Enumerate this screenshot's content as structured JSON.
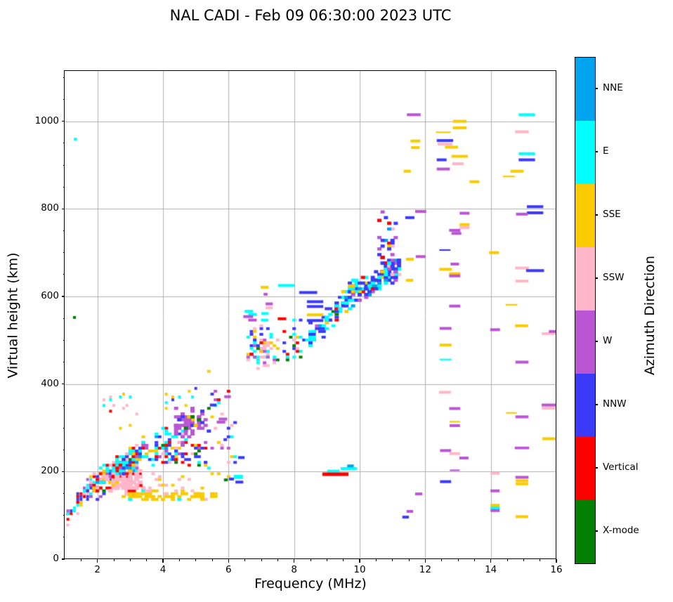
{
  "title": "NAL CADI - Feb 09 06:30:00 2023 UTC",
  "chart_data": {
    "type": "scatter",
    "title": "NAL CADI - Feb 09 06:30:00 2023 UTC",
    "xlabel": "Frequency (MHz)",
    "ylabel": "Virtual height (km)",
    "colorbar_title": "Azimuth Direction",
    "xlim": [
      1.0,
      16.0
    ],
    "ylim": [
      0,
      1115
    ],
    "x_major_ticks": [
      2,
      4,
      6,
      8,
      10,
      12,
      14,
      16
    ],
    "x_minor_step": 0.5,
    "y_major_ticks": [
      0,
      200,
      400,
      600,
      800,
      1000
    ],
    "y_minor_step": 50,
    "grid": true,
    "grid_color": "#b0b0b0",
    "background": "#ffffff",
    "categories": [
      {
        "label": "NNE",
        "color": "#00A3EE"
      },
      {
        "label": "E",
        "color": "#00FFFF"
      },
      {
        "label": "SSE",
        "color": "#F9CB00"
      },
      {
        "label": "SSW",
        "color": "#FFB6C8"
      },
      {
        "label": "W",
        "color": "#BA55D3"
      },
      {
        "label": "NNW",
        "color": "#3B3AF8"
      },
      {
        "label": "Vertical",
        "color": "#FF0000"
      },
      {
        "label": "X-mode",
        "color": "#038003"
      }
    ],
    "bin": {
      "f_mhz": 0.1,
      "km": 6.5
    },
    "clusters": [
      {
        "name": "e-region-tail",
        "shape": "slash",
        "f": [
          1.05,
          1.95
        ],
        "kmTrend": [
          95,
          185
        ],
        "spread": 55,
        "n": 48,
        "size": [
          4,
          4
        ],
        "seed": 11,
        "colors": {
          "E": 0.28,
          "Vertical": 0.2,
          "NNW": 0.18,
          "SSE": 0.12,
          "SSW": 0.12,
          "W": 0.1
        }
      },
      {
        "name": "e-region-core",
        "shape": "slash",
        "f": [
          1.8,
          3.3
        ],
        "kmTrend": [
          165,
          230
        ],
        "spread": 80,
        "n": 215,
        "size": [
          5,
          4
        ],
        "seed": 22,
        "colors": {
          "Vertical": 0.27,
          "E": 0.26,
          "NNW": 0.11,
          "SSE": 0.1,
          "SSW": 0.13,
          "W": 0.06,
          "NNE": 0.03,
          "X-mode": 0.02,
          "NNE2": 0.02
        }
      },
      {
        "name": "pink-blob",
        "shape": "blob",
        "f": [
          2.2,
          3.45
        ],
        "km": [
          146,
          202
        ],
        "n": 95,
        "size": [
          7,
          5
        ],
        "seed": 33,
        "colors": {
          "SSW": 0.93,
          "Vertical": 0.04,
          "SSE": 0.03
        }
      },
      {
        "name": "gold-band",
        "shape": "band",
        "f": [
          2.75,
          5.65
        ],
        "km": [
          136,
          154
        ],
        "n": 75,
        "size": [
          6,
          4
        ],
        "seed": 44,
        "colors": {
          "SSE": 0.85,
          "SSW": 0.1,
          "E": 0.05
        }
      },
      {
        "name": "pink-row",
        "shape": "band",
        "f": [
          2.4,
          5.7
        ],
        "km": [
          156,
          196
        ],
        "n": 26,
        "size": [
          5,
          4
        ],
        "seed": 55,
        "colors": {
          "SSW": 0.75,
          "SSE": 0.25
        }
      },
      {
        "name": "cyan-rise",
        "shape": "slash",
        "f": [
          2.5,
          4.7
        ],
        "kmTrend": [
          210,
          290
        ],
        "spread": 75,
        "n": 115,
        "size": [
          5,
          4
        ],
        "seed": 66,
        "colors": {
          "E": 0.42,
          "Vertical": 0.2,
          "NNW": 0.12,
          "SSE": 0.11,
          "SSW": 0.05,
          "W": 0.05,
          "NNE": 0.05
        }
      },
      {
        "name": "purple-cluster",
        "shape": "blob",
        "f": [
          4.25,
          5.45
        ],
        "km": [
          272,
          348
        ],
        "n": 70,
        "size": [
          6,
          4.5
        ],
        "seed": 77,
        "colors": {
          "W": 0.7,
          "NNW": 0.12,
          "SSE": 0.06,
          "E": 0.05,
          "X-mode": 0.04,
          "Vertical": 0.03
        }
      },
      {
        "name": "mixed-row",
        "shape": "band",
        "f": [
          3.75,
          5.35
        ],
        "km": [
          213,
          272
        ],
        "n": 58,
        "size": [
          5,
          4
        ],
        "seed": 88,
        "colors": {
          "NNW": 0.28,
          "W": 0.2,
          "Vertical": 0.16,
          "E": 0.15,
          "SSE": 0.11,
          "SSW": 0.05,
          "X-mode": 0.05
        }
      },
      {
        "name": "column-5-6",
        "shape": "band",
        "f": [
          5.4,
          6.2
        ],
        "km": [
          185,
          430
        ],
        "n": 34,
        "size": [
          5,
          4
        ],
        "seed": 99,
        "colors": {
          "NNW": 0.3,
          "E": 0.2,
          "W": 0.16,
          "SSW": 0.12,
          "SSE": 0.1,
          "Vertical": 0.07,
          "X-mode": 0.05
        }
      },
      {
        "name": "f1-column",
        "shape": "blob",
        "f": [
          6.42,
          7.58
        ],
        "km": [
          428,
          532
        ],
        "n": 80,
        "size": [
          5,
          4
        ],
        "seed": 111,
        "colors": {
          "SSW": 0.28,
          "E": 0.28,
          "NNW": 0.16,
          "SSE": 0.1,
          "W": 0.1,
          "Vertical": 0.06,
          "X-mode": 0.02
        }
      },
      {
        "name": "column-8",
        "shape": "band",
        "f": [
          7.72,
          8.28
        ],
        "km": [
          452,
          548
        ],
        "n": 26,
        "size": [
          5,
          4
        ],
        "seed": 122,
        "colors": {
          "E": 0.33,
          "NNW": 0.27,
          "SSW": 0.15,
          "Vertical": 0.1,
          "SSE": 0.1,
          "X-mode": 0.05
        }
      },
      {
        "name": "column-9",
        "shape": "slash",
        "f": [
          8.4,
          9.45
        ],
        "kmTrend": [
          495,
          585
        ],
        "spread": 70,
        "n": 62,
        "size": [
          6,
          4
        ],
        "seed": 133,
        "colors": {
          "E": 0.4,
          "NNW": 0.33,
          "Vertical": 0.07,
          "SSE": 0.07,
          "X-mode": 0.05,
          "W": 0.04,
          "NNE": 0.04
        }
      },
      {
        "name": "main-f-trace",
        "shape": "slash",
        "f": [
          9.45,
          11.25
        ],
        "kmTrend": [
          590,
          668
        ],
        "spread": 70,
        "n": 160,
        "size": [
          6,
          4.5
        ],
        "seed": 144,
        "colors": {
          "NNW": 0.37,
          "E": 0.3,
          "SSE": 0.1,
          "NNE": 0.06,
          "W": 0.06,
          "Vertical": 0.05,
          "X-mode": 0.04,
          "SSW": 0.02
        }
      },
      {
        "name": "spread-f-column",
        "shape": "band",
        "f": [
          10.55,
          11.1
        ],
        "km": [
          650,
          792
        ],
        "n": 38,
        "size": [
          6,
          4.5
        ],
        "seed": 155,
        "colors": {
          "NNW": 0.42,
          "W": 0.15,
          "SSE": 0.13,
          "E": 0.1,
          "Vertical": 0.09,
          "NNE": 0.06,
          "SSW": 0.05
        }
      },
      {
        "name": "upper-specks",
        "shape": "band",
        "f": [
          2.15,
          3.25
        ],
        "km": [
          300,
          378
        ],
        "n": 14,
        "size": [
          4,
          4
        ],
        "seed": 166,
        "colors": {
          "E": 0.4,
          "SSE": 0.3,
          "SSW": 0.2,
          "Vertical": 0.1
        }
      },
      {
        "name": "specks-4mhz",
        "shape": "band",
        "f": [
          4.0,
          5.15
        ],
        "km": [
          345,
          392
        ],
        "n": 10,
        "size": [
          4,
          4
        ],
        "seed": 177,
        "colors": {
          "NNW": 0.4,
          "SSE": 0.3,
          "E": 0.3
        }
      }
    ],
    "points": [
      [
        1.33,
        959,
        "E",
        0.1
      ],
      [
        1.3,
        552,
        "X-mode",
        0.09
      ],
      [
        5.92,
        181,
        "X-mode",
        0.12
      ],
      [
        6.09,
        183,
        "NNW",
        0.15
      ],
      [
        6.3,
        188,
        "E",
        0.28,
        9
      ],
      [
        6.33,
        176,
        "NNW",
        0.24
      ],
      [
        6.39,
        232,
        "NNW",
        0.2
      ],
      [
        5.97,
        371,
        "W",
        0.2
      ],
      [
        5.53,
        352,
        "NNW",
        0.2
      ],
      [
        5.83,
        320,
        "W",
        0.26
      ],
      [
        5.77,
        313,
        "W",
        0.26
      ],
      [
        6.62,
        566,
        "E",
        0.26
      ],
      [
        6.73,
        559,
        "E",
        0.26
      ],
      [
        7.11,
        561,
        "E",
        0.22
      ],
      [
        6.6,
        554,
        "W",
        0.3
      ],
      [
        6.73,
        546,
        "W",
        0.26
      ],
      [
        7.1,
        546,
        "E",
        0.22
      ],
      [
        7.24,
        583,
        "W",
        0.22
      ],
      [
        7.24,
        574,
        "SSW",
        0.22
      ],
      [
        7.63,
        549,
        "Vertical",
        0.26
      ],
      [
        7.1,
        621,
        "SSE",
        0.24
      ],
      [
        7.76,
        625,
        "E",
        0.5
      ],
      [
        7.13,
        605,
        "W",
        0.12
      ],
      [
        8.43,
        609,
        "NNW",
        0.55
      ],
      [
        8.64,
        588,
        "NNW",
        0.5
      ],
      [
        8.64,
        577,
        "NNW",
        0.5
      ],
      [
        8.64,
        558,
        "SSE",
        0.5
      ],
      [
        8.64,
        545,
        "NNW",
        0.5
      ],
      [
        9.2,
        201,
        "E",
        0.38
      ],
      [
        9.26,
        194,
        "Vertical",
        0.8,
        8
      ],
      [
        9.67,
        207,
        "E",
        0.5
      ],
      [
        9.72,
        213,
        "NNE",
        0.2
      ],
      [
        11.65,
        1015,
        "W",
        0.42
      ],
      [
        11.7,
        955,
        "SSE",
        0.3
      ],
      [
        11.7,
        940,
        "SSE",
        0.26
      ],
      [
        11.45,
        886,
        "SSE",
        0.22
      ],
      [
        11.86,
        794,
        "W",
        0.34
      ],
      [
        11.53,
        780,
        "NNW",
        0.28
      ],
      [
        11.86,
        691,
        "W",
        0.3
      ],
      [
        11.53,
        685,
        "SSE",
        0.24
      ],
      [
        11.52,
        637,
        "SSE",
        0.22
      ],
      [
        11.8,
        149,
        "W",
        0.22
      ],
      [
        11.53,
        109,
        "W",
        0.2
      ],
      [
        11.4,
        96,
        "NNW",
        0.2
      ],
      [
        13.05,
        1000,
        "SSE",
        0.42
      ],
      [
        13.05,
        985,
        "SSE",
        0.42
      ],
      [
        12.55,
        975,
        "SSE",
        0.45,
        3.5
      ],
      [
        12.6,
        956,
        "NNW",
        0.5
      ],
      [
        12.6,
        948,
        "SSW",
        0.45
      ],
      [
        12.8,
        941,
        "SSE",
        0.4
      ],
      [
        13.05,
        920,
        "SSE",
        0.5
      ],
      [
        12.5,
        912,
        "NNW",
        0.3
      ],
      [
        13.0,
        903,
        "SSW",
        0.35
      ],
      [
        12.55,
        891,
        "W",
        0.4
      ],
      [
        13.2,
        790,
        "W",
        0.3
      ],
      [
        13.2,
        764,
        "SSE",
        0.3
      ],
      [
        13.2,
        757,
        "SSW",
        0.3
      ],
      [
        12.9,
        751,
        "W",
        0.34
      ],
      [
        12.95,
        744,
        "W",
        0.3
      ],
      [
        12.6,
        706,
        "NNW",
        0.34,
        3.5
      ],
      [
        12.9,
        674,
        "W",
        0.26
      ],
      [
        12.62,
        662,
        "SSE",
        0.38
      ],
      [
        12.9,
        652,
        "SSE",
        0.34
      ],
      [
        12.9,
        647,
        "W",
        0.34
      ],
      [
        12.9,
        578,
        "W",
        0.34
      ],
      [
        12.62,
        527,
        "W",
        0.36
      ],
      [
        12.62,
        489,
        "SSE",
        0.36
      ],
      [
        12.62,
        456,
        "E",
        0.36,
        3.5
      ],
      [
        12.6,
        381,
        "SSW",
        0.36
      ],
      [
        12.9,
        344,
        "W",
        0.34
      ],
      [
        12.9,
        314,
        "SSE",
        0.32,
        3.5
      ],
      [
        12.9,
        305,
        "W",
        0.32
      ],
      [
        12.62,
        248,
        "W",
        0.34
      ],
      [
        12.9,
        241,
        "SSW",
        0.32
      ],
      [
        13.18,
        231,
        "W",
        0.28
      ],
      [
        12.9,
        203,
        "W",
        0.3,
        3.5
      ],
      [
        12.62,
        177,
        "NNW",
        0.34
      ],
      [
        13.5,
        862,
        "SSE",
        0.3
      ],
      [
        14.1,
        700,
        "SSE",
        0.3
      ],
      [
        14.55,
        874,
        "SSE",
        0.36,
        3.5
      ],
      [
        14.63,
        581,
        "SSE",
        0.36,
        3.5
      ],
      [
        14.63,
        334,
        "SSE",
        0.33,
        3.5
      ],
      [
        14.13,
        524,
        "W",
        0.3
      ],
      [
        14.13,
        196,
        "SSW",
        0.28
      ],
      [
        14.13,
        156,
        "W",
        0.28
      ],
      [
        14.13,
        123,
        "SSE",
        0.28
      ],
      [
        14.13,
        117,
        "E",
        0.28
      ],
      [
        14.13,
        111,
        "W",
        0.28
      ],
      [
        14.8,
        886,
        "SSE",
        0.4
      ],
      [
        14.95,
        976,
        "SSW",
        0.42
      ],
      [
        15.1,
        1015,
        "E",
        0.5
      ],
      [
        15.1,
        926,
        "E",
        0.5
      ],
      [
        15.1,
        912,
        "NNW",
        0.5
      ],
      [
        15.35,
        805,
        "NNW",
        0.5
      ],
      [
        15.35,
        791,
        "NNW",
        0.5
      ],
      [
        14.95,
        788,
        "W",
        0.36
      ],
      [
        14.95,
        665,
        "SSW",
        0.42
      ],
      [
        15.35,
        659,
        "NNW",
        0.55
      ],
      [
        14.95,
        635,
        "SSW",
        0.4
      ],
      [
        14.94,
        533,
        "SSE",
        0.4
      ],
      [
        14.95,
        450,
        "W",
        0.4
      ],
      [
        14.95,
        325,
        "W",
        0.4
      ],
      [
        14.95,
        254,
        "W",
        0.44,
        6
      ],
      [
        14.95,
        187,
        "W",
        0.4
      ],
      [
        14.95,
        179,
        "SSE",
        0.38
      ],
      [
        14.95,
        172,
        "SSE",
        0.38
      ],
      [
        14.95,
        97,
        "SSE",
        0.38
      ],
      [
        15.78,
        515,
        "SSW",
        0.46,
        6
      ],
      [
        15.92,
        520,
        "W",
        0.3
      ],
      [
        15.78,
        352,
        "W",
        0.46
      ],
      [
        15.78,
        345,
        "SSW",
        0.46
      ],
      [
        15.8,
        275,
        "SSE",
        0.46
      ]
    ]
  }
}
